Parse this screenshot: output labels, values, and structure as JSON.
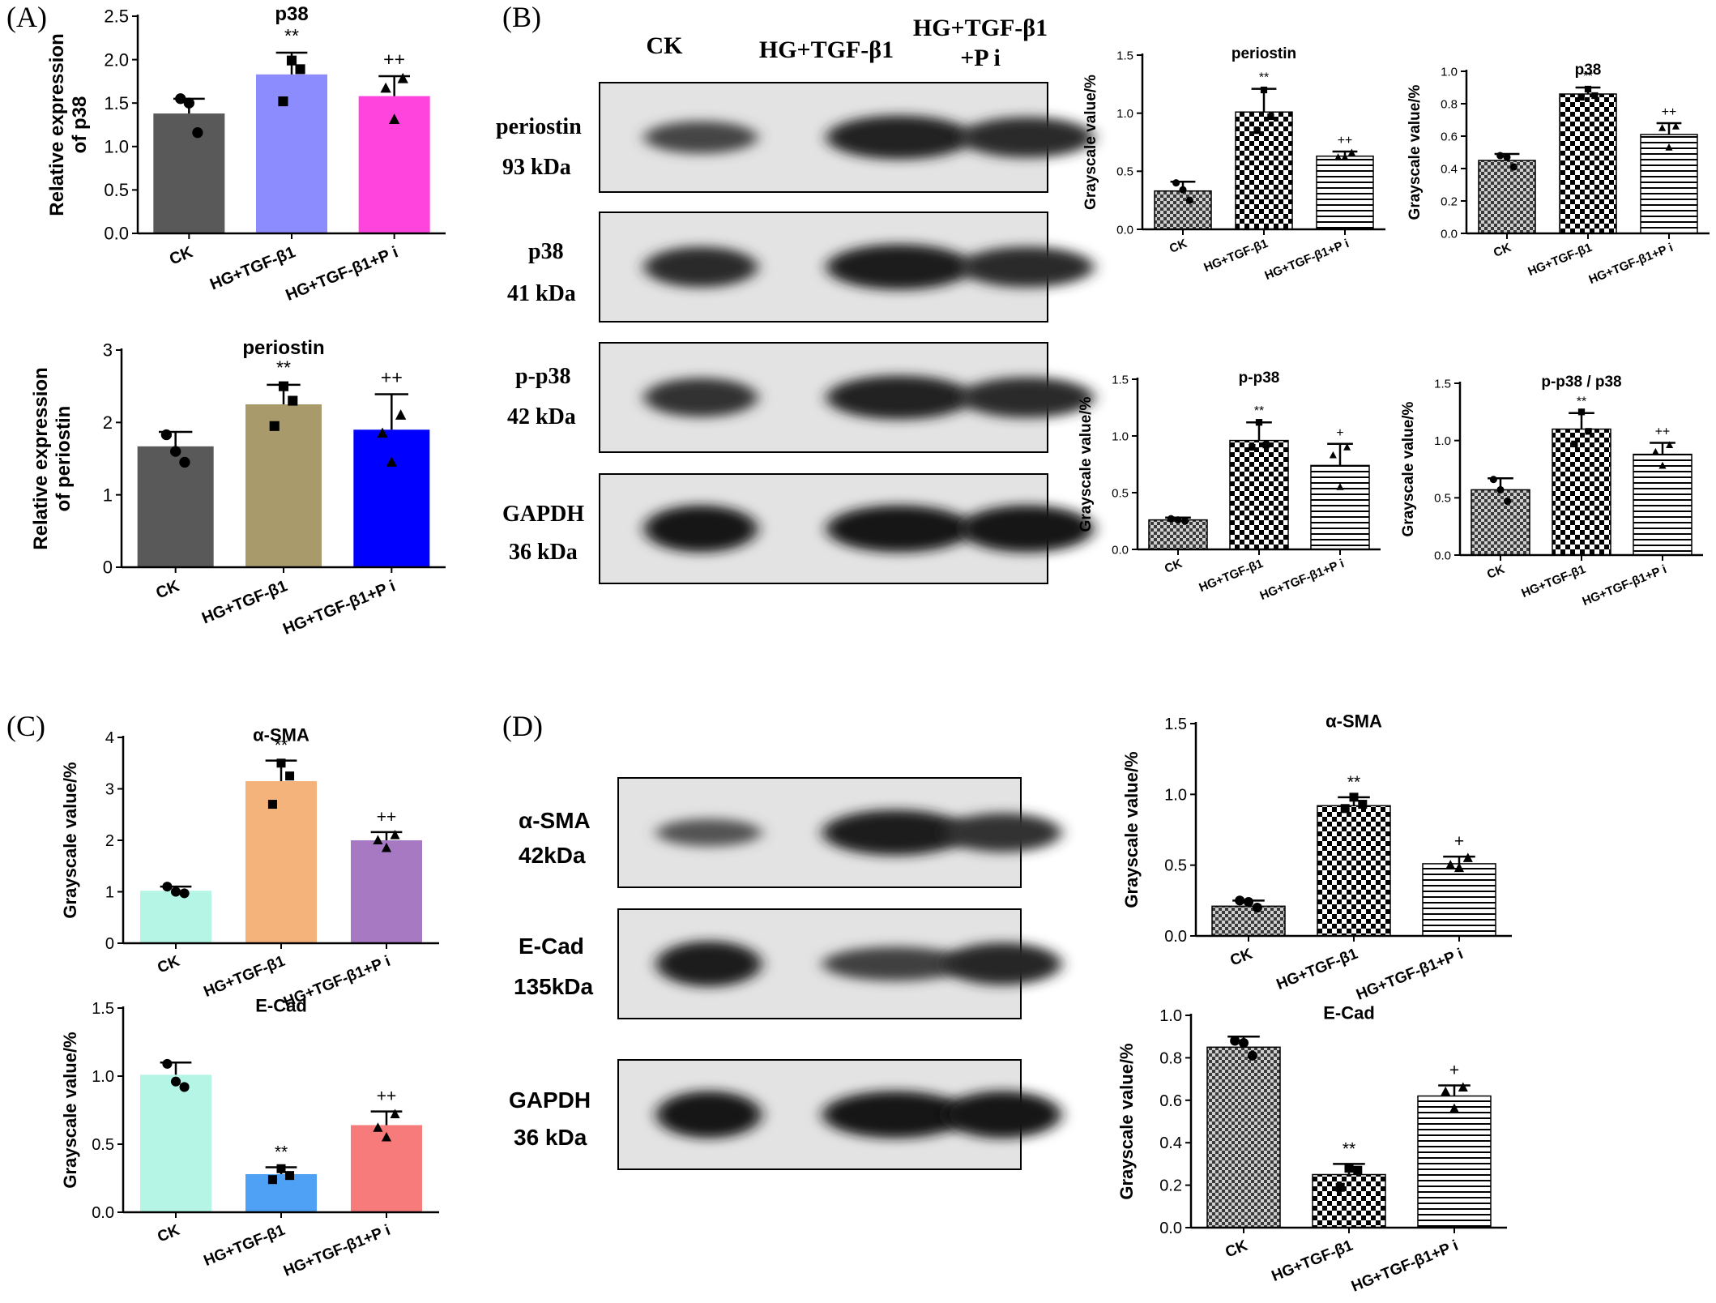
{
  "panels": {
    "A": {
      "letter": "(A)"
    },
    "B": {
      "letter": "(B)"
    },
    "C": {
      "letter": "(C)"
    },
    "D": {
      "letter": "(D)"
    }
  },
  "blots": {
    "B": {
      "lanes": [
        "CK",
        "HG+TGF-β1",
        "HG+TGF-β1\n+P i"
      ],
      "lane_line1": [
        "CK",
        "HG+TGF-β1",
        "HG+TGF-β1"
      ],
      "lane_line2": [
        "",
        "",
        "+P i"
      ],
      "rows": [
        {
          "name": "periostin",
          "mw": "93 kDa",
          "intensity": [
            0.55,
            0.9,
            0.8
          ]
        },
        {
          "name": "p38",
          "mw": "41 kDa",
          "intensity": [
            0.8,
            0.95,
            0.8
          ]
        },
        {
          "name": "p-p38",
          "mw": "42 kDa",
          "intensity": [
            0.75,
            0.9,
            0.8
          ]
        },
        {
          "name": "GAPDH",
          "mw": "36 kDa",
          "intensity": [
            1.0,
            1.0,
            1.0
          ]
        }
      ]
    },
    "D": {
      "rows": [
        {
          "name": "α-SMA",
          "mw": "42kDa",
          "intensity": [
            0.4,
            0.95,
            0.75
          ]
        },
        {
          "name": "E-Cad",
          "mw": "135kDa",
          "intensity": [
            0.95,
            0.6,
            0.85
          ]
        },
        {
          "name": "GAPDH",
          "mw": "36 kDa",
          "intensity": [
            1.0,
            1.0,
            1.0
          ]
        }
      ]
    }
  },
  "chart_data": [
    {
      "id": "A1",
      "type": "bar",
      "title": "p38",
      "ylabel": "Relative expression\nof  p38",
      "ylabel_lines": [
        "Relative expression",
        "of  p38"
      ],
      "ylim": [
        0,
        2.5
      ],
      "yticks": [
        "0.0",
        "0.5",
        "1.0",
        "1.5",
        "2.0",
        "2.5"
      ],
      "tick_values": [
        0,
        0.5,
        1.0,
        1.5,
        2.0,
        2.5
      ],
      "categories": [
        "CK",
        "HG+TGF-β1",
        "HG+TGF-β1+P i"
      ],
      "values": [
        1.38,
        1.83,
        1.58
      ],
      "errors": [
        0.17,
        0.25,
        0.23
      ],
      "points": [
        [
          1.55,
          1.5,
          1.16
        ],
        [
          1.99,
          1.89,
          1.52
        ],
        [
          1.78,
          1.67,
          1.31
        ]
      ],
      "colors": [
        "#595959",
        "#8c8cff",
        "#ff44dd"
      ],
      "patterns": [
        "solid",
        "solid",
        "solid"
      ],
      "annotations": [
        "",
        "**",
        "++"
      ]
    },
    {
      "id": "A2",
      "type": "bar",
      "title": "periostin",
      "ylabel": "Relative expression\nof  periostin",
      "ylabel_lines": [
        "Relative expression",
        "of  periostin"
      ],
      "ylim": [
        0,
        3
      ],
      "yticks": [
        "0",
        "1",
        "2",
        "3"
      ],
      "tick_values": [
        0,
        1,
        2,
        3
      ],
      "categories": [
        "CK",
        "HG+TGF-β1",
        "HG+TGF-β1+P i"
      ],
      "values": [
        1.67,
        2.25,
        1.9
      ],
      "errors": [
        0.2,
        0.27,
        0.49
      ],
      "points": [
        [
          1.83,
          1.6,
          1.45
        ],
        [
          2.5,
          2.3,
          1.95
        ],
        [
          2.1,
          1.85,
          1.45
        ]
      ],
      "colors": [
        "#595959",
        "#a89a6a",
        "#0000ff"
      ],
      "patterns": [
        "solid",
        "solid",
        "solid"
      ],
      "annotations": [
        "",
        "**",
        "++"
      ]
    },
    {
      "id": "B1",
      "type": "bar",
      "title": "periostin",
      "ylabel": "Grayscale value/%",
      "ylabel_lines": [
        "Grayscale value/%"
      ],
      "ylim": [
        0,
        1.5
      ],
      "yticks": [
        "0.0",
        "0.5",
        "1.0",
        "1.5"
      ],
      "tick_values": [
        0,
        0.5,
        1.0,
        1.5
      ],
      "categories": [
        "CK",
        "HG+TGF-β1",
        "HG+TGF-β1+P i"
      ],
      "values": [
        0.33,
        1.01,
        0.63
      ],
      "errors": [
        0.08,
        0.2,
        0.04
      ],
      "points": [
        [
          0.4,
          0.34,
          0.25
        ],
        [
          1.2,
          0.97,
          0.85
        ],
        [
          0.66,
          0.62,
          0.62
        ]
      ],
      "colors": [
        "#8a8a8a",
        "#ffffff",
        "#ffffff"
      ],
      "patterns": [
        "check",
        "check",
        "hlines"
      ],
      "annotations": [
        "",
        "**",
        "++"
      ]
    },
    {
      "id": "B2",
      "type": "bar",
      "title": "p38",
      "ylabel": "Grayscale value/%",
      "ylabel_lines": [
        "Grayscale value/%"
      ],
      "ylim": [
        0,
        1.0
      ],
      "yticks": [
        "0.0",
        "0.2",
        "0.4",
        "0.6",
        "0.8",
        "1.0"
      ],
      "tick_values": [
        0,
        0.2,
        0.4,
        0.6,
        0.8,
        1.0
      ],
      "categories": [
        "CK",
        "HG+TGF-β1",
        "HG+TGF-β1+P i"
      ],
      "values": [
        0.45,
        0.86,
        0.61
      ],
      "errors": [
        0.04,
        0.04,
        0.07
      ],
      "points": [
        [
          0.48,
          0.47,
          0.41
        ],
        [
          0.89,
          0.85,
          0.84
        ],
        [
          0.66,
          0.65,
          0.53
        ]
      ],
      "colors": [
        "#8a8a8a",
        "#ffffff",
        "#ffffff"
      ],
      "patterns": [
        "check",
        "check",
        "hlines"
      ],
      "annotations": [
        "",
        "**",
        "++"
      ]
    },
    {
      "id": "B3",
      "type": "bar",
      "title": "p-p38",
      "ylabel": "Grayscale value/%",
      "ylabel_lines": [
        "Grayscale value/%"
      ],
      "ylim": [
        0,
        1.5
      ],
      "yticks": [
        "0.0",
        "0.5",
        "1.0",
        "1.5"
      ],
      "tick_values": [
        0,
        0.5,
        1.0,
        1.5
      ],
      "categories": [
        "CK",
        "HG+TGF-β1",
        "HG+TGF-β1+P i"
      ],
      "values": [
        0.26,
        0.96,
        0.74
      ],
      "errors": [
        0.02,
        0.16,
        0.19
      ],
      "points": [
        [
          0.27,
          0.26,
          0.25
        ],
        [
          1.12,
          0.92,
          0.9
        ],
        [
          0.9,
          0.83,
          0.55
        ]
      ],
      "colors": [
        "#8a8a8a",
        "#ffffff",
        "#ffffff"
      ],
      "patterns": [
        "check",
        "check",
        "hlines"
      ],
      "annotations": [
        "",
        "**",
        "+"
      ]
    },
    {
      "id": "B4",
      "type": "bar",
      "title": "p-p38 / p38",
      "ylabel": "Grayscale value/%",
      "ylabel_lines": [
        "Grayscale value/%"
      ],
      "ylim": [
        0,
        1.5
      ],
      "yticks": [
        "0.0",
        "0.5",
        "1.0",
        "1.5"
      ],
      "tick_values": [
        0,
        0.5,
        1.0,
        1.5
      ],
      "categories": [
        "CK",
        "HG+TGF-β1",
        "HG+TGF-β1+P i"
      ],
      "values": [
        0.57,
        1.1,
        0.88
      ],
      "errors": [
        0.1,
        0.14,
        0.1
      ],
      "points": [
        [
          0.66,
          0.57,
          0.47
        ],
        [
          1.25,
          1.08,
          0.97
        ],
        [
          0.96,
          0.9,
          0.78
        ]
      ],
      "colors": [
        "#8a8a8a",
        "#ffffff",
        "#ffffff"
      ],
      "patterns": [
        "check",
        "check",
        "hlines"
      ],
      "annotations": [
        "",
        "**",
        "++"
      ]
    },
    {
      "id": "C1",
      "type": "bar",
      "title": "α-SMA",
      "ylabel": "Grayscale value/%",
      "ylabel_lines": [
        "Grayscale value/%"
      ],
      "ylim": [
        0,
        4
      ],
      "yticks": [
        "0",
        "1",
        "2",
        "3",
        "4"
      ],
      "tick_values": [
        0,
        1,
        2,
        3,
        4
      ],
      "categories": [
        "CK",
        "HG+TGF-β1",
        "HG+TGF-β1+P i"
      ],
      "values": [
        1.02,
        3.15,
        2.0
      ],
      "errors": [
        0.08,
        0.4,
        0.16
      ],
      "points": [
        [
          1.1,
          1.0,
          0.97
        ],
        [
          3.5,
          3.25,
          2.7
        ],
        [
          2.1,
          2.0,
          1.85
        ]
      ],
      "colors": [
        "#b4f5e6",
        "#f4b37b",
        "#a779c2"
      ],
      "patterns": [
        "solid",
        "solid",
        "solid"
      ],
      "annotations": [
        "",
        "**",
        "++"
      ]
    },
    {
      "id": "C2",
      "type": "bar",
      "title": "E-Cad",
      "ylabel": "Grayscale value/%",
      "ylabel_lines": [
        "Grayscale value/%"
      ],
      "ylim": [
        0,
        1.5
      ],
      "yticks": [
        "0.0",
        "0.5",
        "1.0",
        "1.5"
      ],
      "tick_values": [
        0,
        0.5,
        1.0,
        1.5
      ],
      "categories": [
        "CK",
        "HG+TGF-β1",
        "HG+TGF-β1+P i"
      ],
      "values": [
        1.01,
        0.28,
        0.64
      ],
      "errors": [
        0.09,
        0.05,
        0.1
      ],
      "points": [
        [
          1.09,
          0.96,
          0.92
        ],
        [
          0.32,
          0.27,
          0.24
        ],
        [
          0.72,
          0.62,
          0.55
        ]
      ],
      "colors": [
        "#b4f5e6",
        "#4ea1f4",
        "#f77b7b"
      ],
      "patterns": [
        "solid",
        "solid",
        "solid"
      ],
      "annotations": [
        "",
        "**",
        "++"
      ]
    },
    {
      "id": "D1",
      "type": "bar",
      "title": "α-SMA",
      "ylabel": "Grayscale value/%",
      "ylabel_lines": [
        "Grayscale value/%"
      ],
      "ylim": [
        0,
        1.5
      ],
      "yticks": [
        "0.0",
        "0.5",
        "1.0",
        "1.5"
      ],
      "tick_values": [
        0,
        0.5,
        1.0,
        1.5
      ],
      "categories": [
        "CK",
        "HG+TGF-β1",
        "HG+TGF-β1+P i"
      ],
      "values": [
        0.21,
        0.92,
        0.51
      ],
      "errors": [
        0.04,
        0.06,
        0.05
      ],
      "points": [
        [
          0.25,
          0.24,
          0.2
        ],
        [
          0.98,
          0.93,
          0.9
        ],
        [
          0.55,
          0.5,
          0.48
        ]
      ],
      "colors": [
        "#8a8a8a",
        "#ffffff",
        "#ffffff"
      ],
      "patterns": [
        "check",
        "check",
        "hlines"
      ],
      "annotations": [
        "",
        "**",
        "+"
      ]
    },
    {
      "id": "D2",
      "type": "bar",
      "title": "E-Cad",
      "ylabel": "Grayscale value/%",
      "ylabel_lines": [
        "Grayscale value/%"
      ],
      "ylim": [
        0,
        1.0
      ],
      "yticks": [
        "0.0",
        "0.2",
        "0.4",
        "0.6",
        "0.8",
        "1.0"
      ],
      "tick_values": [
        0,
        0.2,
        0.4,
        0.6,
        0.8,
        1.0
      ],
      "categories": [
        "CK",
        "HG+TGF-β1",
        "HG+TGF-β1+P i"
      ],
      "values": [
        0.85,
        0.25,
        0.62
      ],
      "errors": [
        0.05,
        0.05,
        0.05
      ],
      "points": [
        [
          0.88,
          0.87,
          0.81
        ],
        [
          0.28,
          0.27,
          0.19
        ],
        [
          0.66,
          0.64,
          0.56
        ]
      ],
      "colors": [
        "#8a8a8a",
        "#ffffff",
        "#ffffff"
      ],
      "patterns": [
        "check",
        "check",
        "hlines"
      ],
      "annotations": [
        "",
        "**",
        "+"
      ]
    }
  ]
}
